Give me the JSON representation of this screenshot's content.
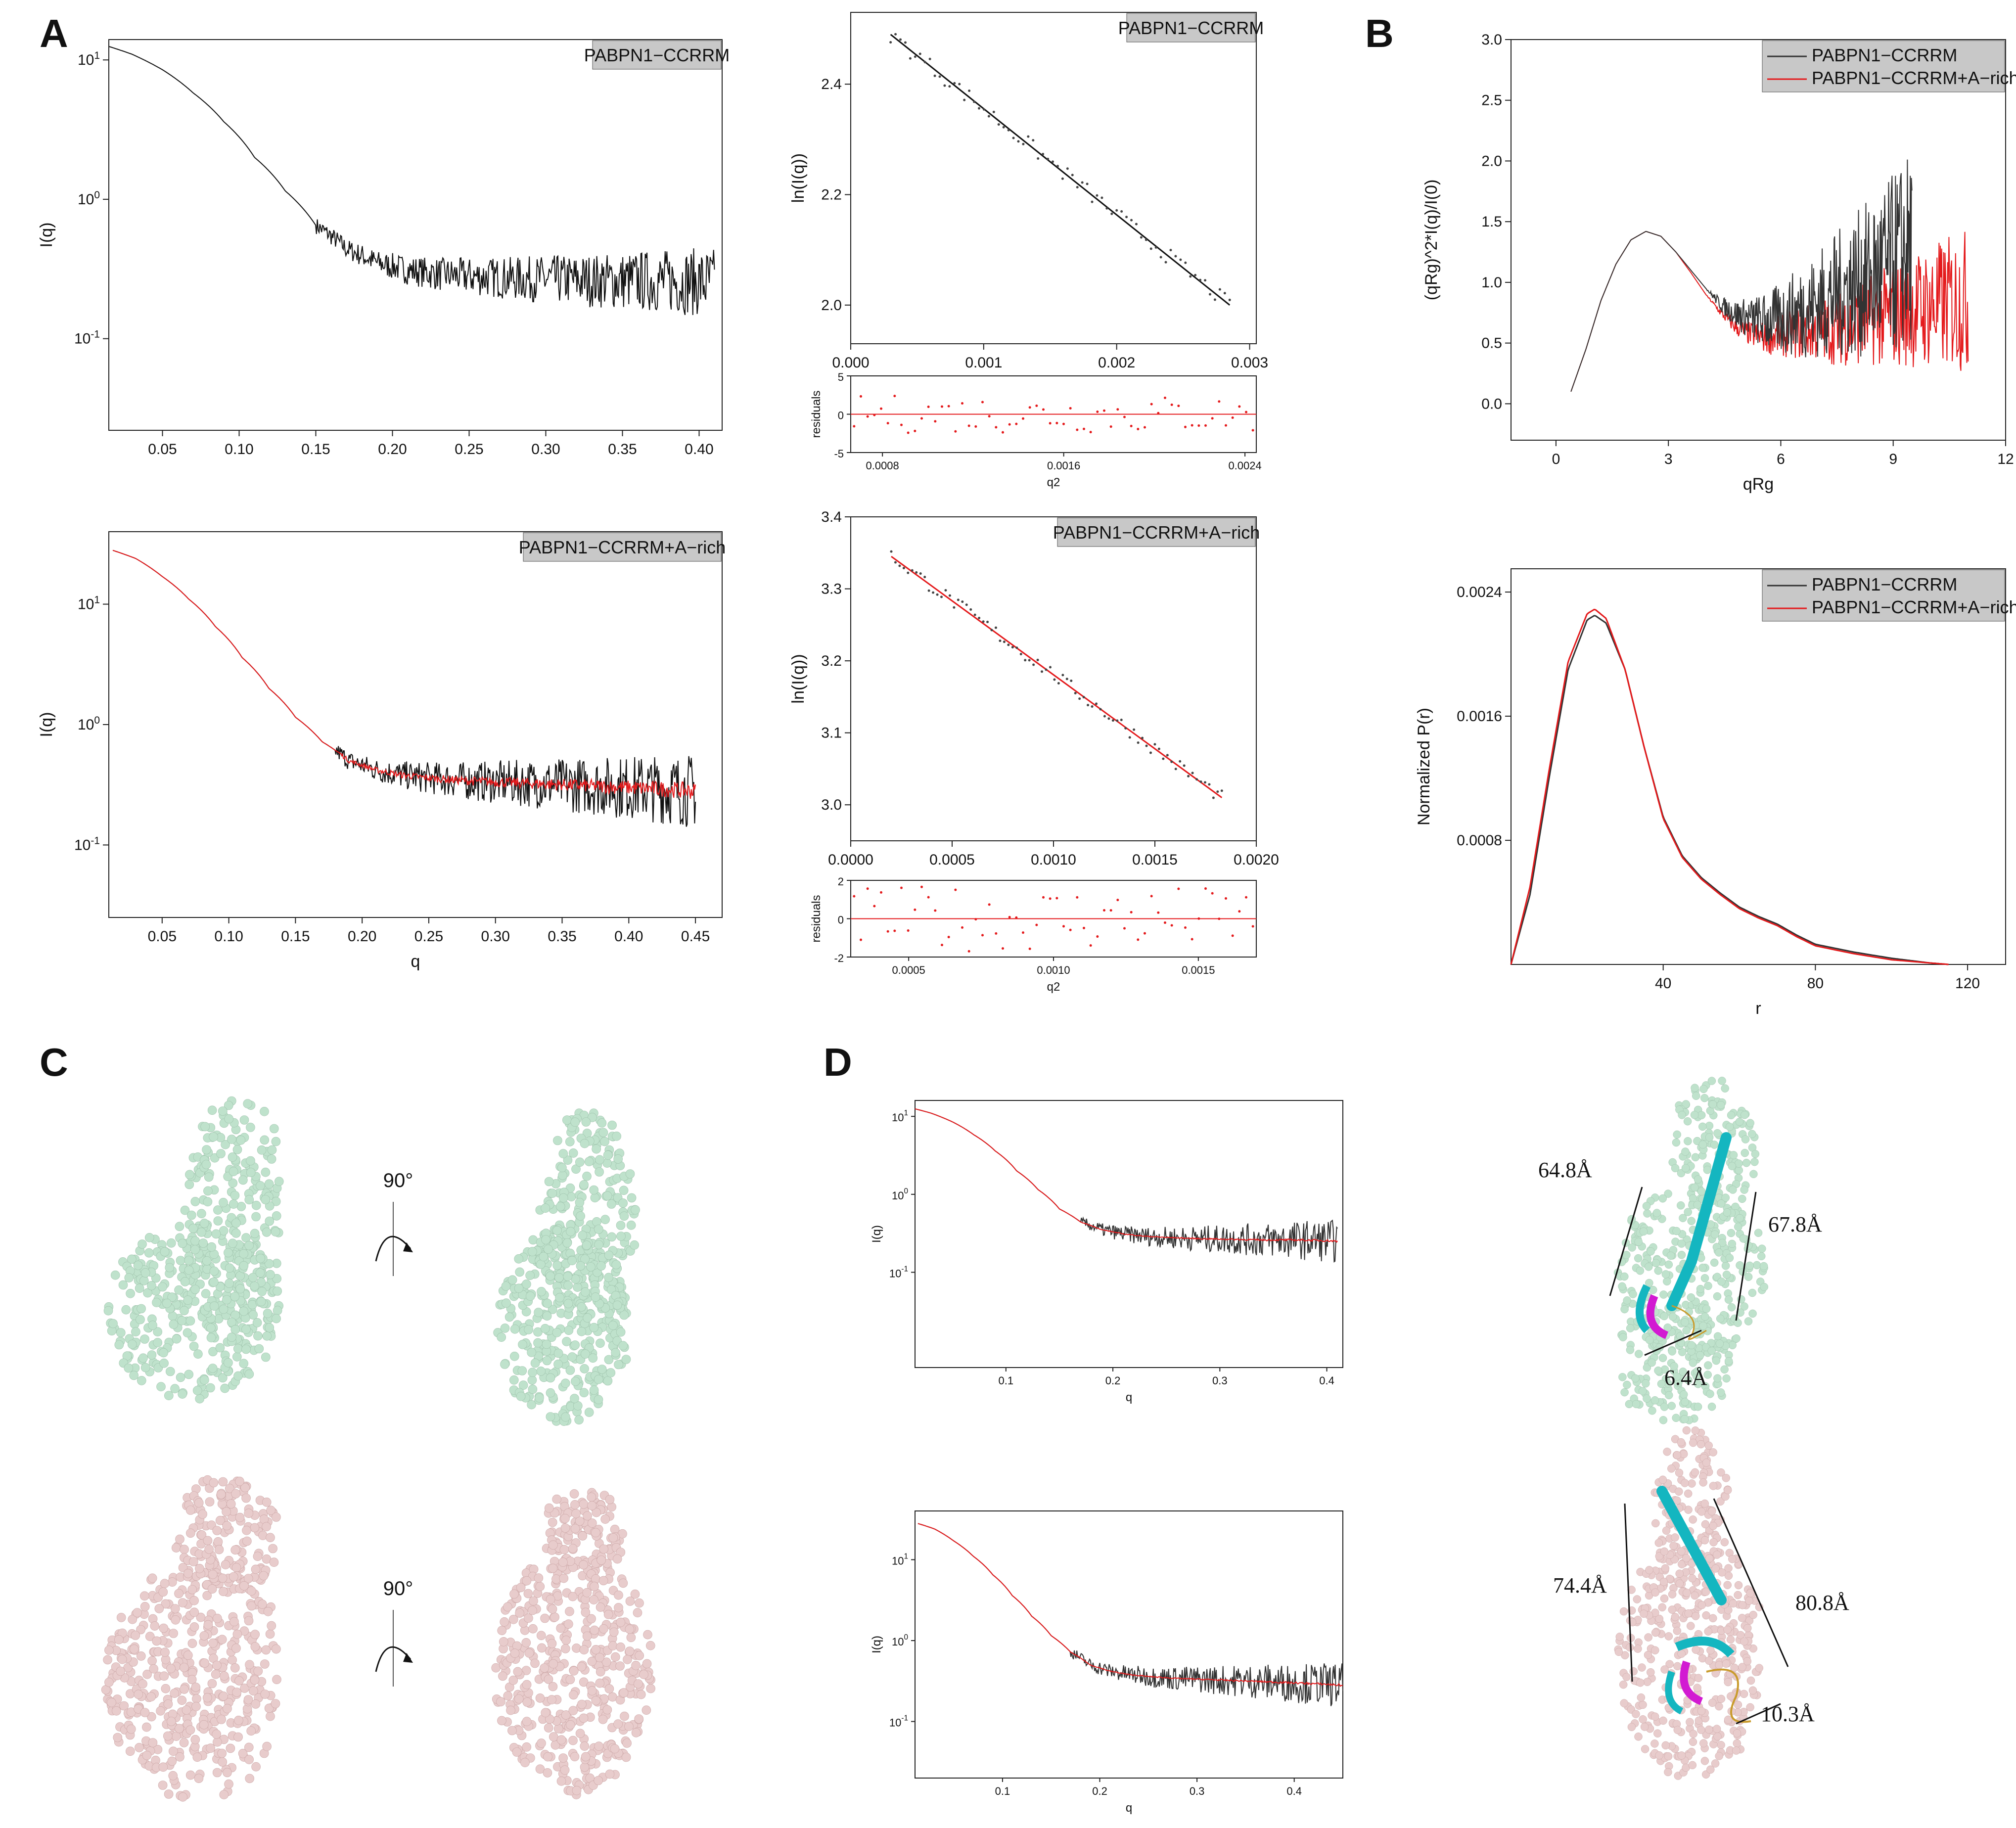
{
  "panels": {
    "A": "A",
    "B": "B",
    "C": "C",
    "D": "D"
  },
  "colors": {
    "black_series": "#111111",
    "red_series": "#e41a1c",
    "legend_bg": "#c8c8c8",
    "green_beads": "#bfe2cc",
    "pink_beads": "#e8cccc",
    "helix": "#14b6c0",
    "sheet": "#d21ad2",
    "coil": "#c99b2c"
  },
  "chart_data": [
    {
      "id": "A1",
      "type": "line",
      "yscale": "log",
      "title": "",
      "legend": [
        "PABPN1−CCRRM"
      ],
      "xlabel": "",
      "ylabel": "I(q)",
      "xlim": [
        0.015,
        0.415
      ],
      "ylim": [
        0.022,
        14
      ],
      "xticks": [
        "0.05",
        "0.10",
        "0.15",
        "0.20",
        "0.25",
        "0.30",
        "0.35",
        "0.40"
      ],
      "yticks": [
        "10^1",
        "10^0",
        "10^-1"
      ],
      "series": [
        {
          "name": "PABPN1−CCRRM",
          "color": "black",
          "x": [
            0.015,
            0.03,
            0.05,
            0.07,
            0.09,
            0.11,
            0.13,
            0.15,
            0.17,
            0.19,
            0.21,
            0.23,
            0.25,
            0.28,
            0.31,
            0.34,
            0.37,
            0.4,
            0.41
          ],
          "y": [
            12.5,
            11,
            8.5,
            5.8,
            3.6,
            2.0,
            1.15,
            0.65,
            0.44,
            0.35,
            0.31,
            0.29,
            0.28,
            0.27,
            0.265,
            0.26,
            0.26,
            0.255,
            0.25
          ]
        }
      ]
    },
    {
      "id": "A2",
      "type": "scatter",
      "title": "",
      "legend": [
        "PABPN1−CCRRM"
      ],
      "xlabel": "",
      "ylabel": "ln(I(q))",
      "xlim": [
        0,
        0.00305
      ],
      "ylim": [
        1.93,
        2.53
      ],
      "xticks": [
        "0.000",
        "0.001",
        "0.002",
        "0.003"
      ],
      "yticks": [
        "2.0",
        "2.2",
        "2.4"
      ],
      "fit": {
        "x": [
          0.0003,
          0.00285
        ],
        "y": [
          2.49,
          2.0
        ]
      }
    },
    {
      "id": "A3",
      "type": "scatter",
      "title": "",
      "xlabel": "q2",
      "ylabel": "residuals",
      "xlim": [
        0.00066,
        0.00245
      ],
      "ylim": [
        -5,
        5
      ],
      "xticks": [
        "0.0008",
        "0.0016",
        "0.0024"
      ],
      "yticks": [
        "5",
        "0",
        "-5"
      ]
    },
    {
      "id": "A4",
      "type": "line",
      "yscale": "log",
      "legend": [
        "PABPN1−CCRRM+A−rich"
      ],
      "xlabel": "q",
      "ylabel": "I(q)",
      "xlim": [
        0.01,
        0.47
      ],
      "ylim": [
        0.025,
        40
      ],
      "xticks": [
        "0.05",
        "0.10",
        "0.15",
        "0.20",
        "0.25",
        "0.30",
        "0.35",
        "0.40",
        "0.45"
      ],
      "yticks": [
        "10^1",
        "10^0",
        "10^-1"
      ],
      "series": [
        {
          "name": "PABPN1−CCRRM+A−rich",
          "color": "red",
          "x": [
            0.013,
            0.03,
            0.05,
            0.07,
            0.09,
            0.11,
            0.13,
            0.15,
            0.17,
            0.19,
            0.21,
            0.23,
            0.25,
            0.28,
            0.31,
            0.34,
            0.37,
            0.4,
            0.43,
            0.45
          ],
          "y": [
            28,
            24,
            17,
            11,
            6.5,
            3.6,
            2.0,
            1.15,
            0.72,
            0.5,
            0.42,
            0.38,
            0.36,
            0.34,
            0.33,
            0.32,
            0.31,
            0.3,
            0.29,
            0.28
          ]
        }
      ]
    },
    {
      "id": "A5",
      "type": "scatter",
      "legend": [
        "PABPN1−CCRRM+A−rich"
      ],
      "xlabel": "",
      "ylabel": "ln(I(q))",
      "xlim": [
        0,
        0.002
      ],
      "ylim": [
        2.95,
        3.4
      ],
      "xticks": [
        "0.0000",
        "0.0005",
        "0.0010",
        "0.0015",
        "0.0020"
      ],
      "yticks": [
        "3.0",
        "3.1",
        "3.2",
        "3.3",
        "3.4"
      ],
      "fit": {
        "x": [
          0.0002,
          0.00183
        ],
        "y": [
          3.345,
          3.01
        ]
      }
    },
    {
      "id": "A6",
      "type": "scatter",
      "xlabel": "q2",
      "ylabel": "residuals",
      "xlim": [
        0.0003,
        0.0017
      ],
      "ylim": [
        -2,
        2
      ],
      "xticks": [
        "0.0005",
        "0.0010",
        "0.0015"
      ],
      "yticks": [
        "2",
        "0",
        "-2"
      ]
    },
    {
      "id": "B1",
      "type": "line",
      "xlabel": "qRg",
      "ylabel": "(qRg)^2*I(q)/I(0)",
      "xlim": [
        -1.2,
        12
      ],
      "ylim": [
        -0.3,
        3.0
      ],
      "xticks": [
        "0",
        "3",
        "6",
        "9",
        "12"
      ],
      "yticks": [
        "0.0",
        "0.5",
        "1.0",
        "1.5",
        "2.0",
        "2.5",
        "3.0"
      ],
      "legend": [
        "PABPN1−CCRRM",
        "PABPN1−CCRRM+A−rich"
      ],
      "series": [
        {
          "name": "PABPN1−CCRRM",
          "color": "black",
          "x": [
            0.4,
            0.8,
            1.2,
            1.6,
            2.0,
            2.4,
            2.8,
            3.2,
            3.6,
            4.0,
            4.4,
            4.8,
            5.2,
            5.6,
            6.0,
            6.5,
            7.0,
            7.5,
            8.0,
            8.5,
            9.0,
            9.5
          ],
          "y": [
            0.1,
            0.45,
            0.85,
            1.15,
            1.35,
            1.42,
            1.38,
            1.25,
            1.1,
            0.95,
            0.82,
            0.74,
            0.7,
            0.68,
            0.7,
            0.76,
            0.82,
            0.9,
            0.98,
            1.05,
            1.15,
            1.3
          ]
        },
        {
          "name": "PABPN1−CCRRM+A−rich",
          "color": "red",
          "x": [
            0.4,
            0.8,
            1.2,
            1.6,
            2.0,
            2.4,
            2.8,
            3.2,
            3.6,
            4.0,
            4.4,
            4.8,
            5.2,
            5.6,
            6.0,
            6.5,
            7.0,
            7.5,
            8.0,
            8.5,
            9.0,
            9.5,
            10.0,
            10.5,
            11.0
          ],
          "y": [
            0.1,
            0.45,
            0.85,
            1.15,
            1.35,
            1.42,
            1.38,
            1.25,
            1.08,
            0.9,
            0.75,
            0.63,
            0.57,
            0.55,
            0.56,
            0.58,
            0.6,
            0.62,
            0.65,
            0.7,
            0.73,
            0.77,
            0.8,
            0.83,
            0.85
          ]
        }
      ]
    },
    {
      "id": "B2",
      "type": "line",
      "xlabel": "r",
      "ylabel": "Normalized P(r)",
      "xlim": [
        0,
        130
      ],
      "ylim": [
        0,
        0.00255
      ],
      "xticks": [
        "40",
        "80",
        "120"
      ],
      "yticks": [
        "0.0008",
        "0.0016",
        "0.0024"
      ],
      "legend": [
        "PABPN1−CCRRM",
        "PABPN1−CCRRM+A−rich"
      ],
      "series": [
        {
          "name": "PABPN1−CCRRM",
          "color": "black",
          "x": [
            0,
            5,
            10,
            15,
            20,
            22,
            25,
            30,
            35,
            40,
            45,
            50,
            55,
            60,
            65,
            70,
            75,
            80,
            90,
            100,
            110,
            115
          ],
          "y": [
            0,
            0.00045,
            0.0012,
            0.0019,
            0.00222,
            0.00225,
            0.0022,
            0.0019,
            0.0014,
            0.00095,
            0.0007,
            0.00056,
            0.00046,
            0.00037,
            0.00031,
            0.00026,
            0.00019,
            0.00013,
            8e-05,
            4e-05,
            1e-05,
            0
          ]
        },
        {
          "name": "PABPN1−CCRRM+A−rich",
          "color": "red",
          "x": [
            0,
            5,
            10,
            15,
            20,
            22,
            25,
            30,
            35,
            40,
            45,
            50,
            55,
            60,
            65,
            70,
            75,
            80,
            90,
            100,
            110,
            115
          ],
          "y": [
            0,
            0.0005,
            0.00125,
            0.00195,
            0.00226,
            0.00229,
            0.00223,
            0.0019,
            0.0014,
            0.00094,
            0.00069,
            0.00055,
            0.00045,
            0.00036,
            0.0003,
            0.00025,
            0.00018,
            0.00012,
            7e-05,
            3e-05,
            1e-05,
            0
          ]
        }
      ]
    },
    {
      "id": "D1",
      "type": "line",
      "yscale": "log",
      "xlabel": "q",
      "ylabel": "I(q)",
      "xlim": [
        0.015,
        0.415
      ],
      "ylim": [
        0.006,
        16
      ],
      "xticks": [
        "0.1",
        "0.2",
        "0.3",
        "0.4"
      ],
      "yticks": [
        "10^1",
        "10^0",
        "10^-1"
      ]
    },
    {
      "id": "D2",
      "type": "line",
      "yscale": "log",
      "xlabel": "q",
      "ylabel": "I(q)",
      "xlim": [
        0.01,
        0.45
      ],
      "ylim": [
        0.02,
        40
      ],
      "xticks": [
        "0.1",
        "0.2",
        "0.3",
        "0.4"
      ],
      "yticks": [
        "10^1",
        "10^0",
        "10^-1"
      ]
    }
  ],
  "panel_C": {
    "rotation_top": "90°",
    "rotation_bottom": "90°"
  },
  "panel_D_annotations": {
    "top": [
      "64.8Å",
      "67.8Å",
      "6.4Å"
    ],
    "bottom": [
      "74.4Å",
      "80.8Å",
      "10.3Å"
    ]
  }
}
